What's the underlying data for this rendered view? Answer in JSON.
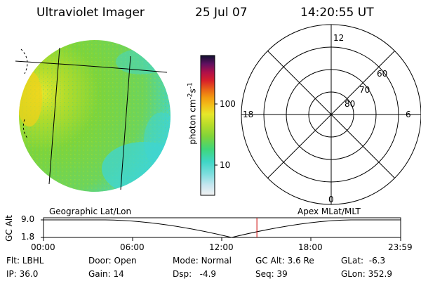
{
  "header": {
    "instrument": "Ultraviolet Imager",
    "date": "25 Jul 07",
    "time": "14:20:55 UT"
  },
  "colorbar": {
    "unit_main": "photon cm",
    "unit_exp1": "-2",
    "unit_mid": "s",
    "unit_exp2": "-1",
    "tick_100": "100",
    "tick_10": "10"
  },
  "polar_plot": {
    "mlt_12": "12",
    "mlt_18": "18",
    "mlt_6": "6",
    "mlt_0": "0",
    "lat_60": "60",
    "lat_70": "70",
    "lat_80": "80"
  },
  "altitude_plot": {
    "ylabel": "GC Alt",
    "ytick_top": "9.0",
    "ytick_bottom": "1.8",
    "left_caption": "Geographic Lat/Lon",
    "right_caption": "Apex MLat/MLT",
    "current_time_fraction": 0.5975,
    "x_ticks": [
      "00:00",
      "06:00",
      "12:00",
      "18:00",
      "23:59"
    ]
  },
  "status": {
    "flt_label": "Flt:",
    "flt_value": "LBHL",
    "ip_label": "IP:",
    "ip_value": "36.0",
    "door_label": "Door:",
    "door_value": "Open",
    "gain_label": "Gain:",
    "gain_value": "14",
    "mode_label": "Mode:",
    "mode_value": "Normal",
    "dsp_label": "Dsp:",
    "dsp_value": "-4.9",
    "gcalt_label": "GC Alt:",
    "gcalt_value": "3.6 Re",
    "seq_label": "Seq:",
    "seq_value": "39",
    "glat_label": "GLat:",
    "glat_value": "-6.3",
    "glon_label": "GLon:",
    "glon_value": "352.9"
  },
  "colors": {
    "disk_green": "#7fd43a",
    "disk_cyan": "#3fd6d2",
    "disk_yellow": "#e6e62a",
    "marker_red": "#cc0000"
  }
}
